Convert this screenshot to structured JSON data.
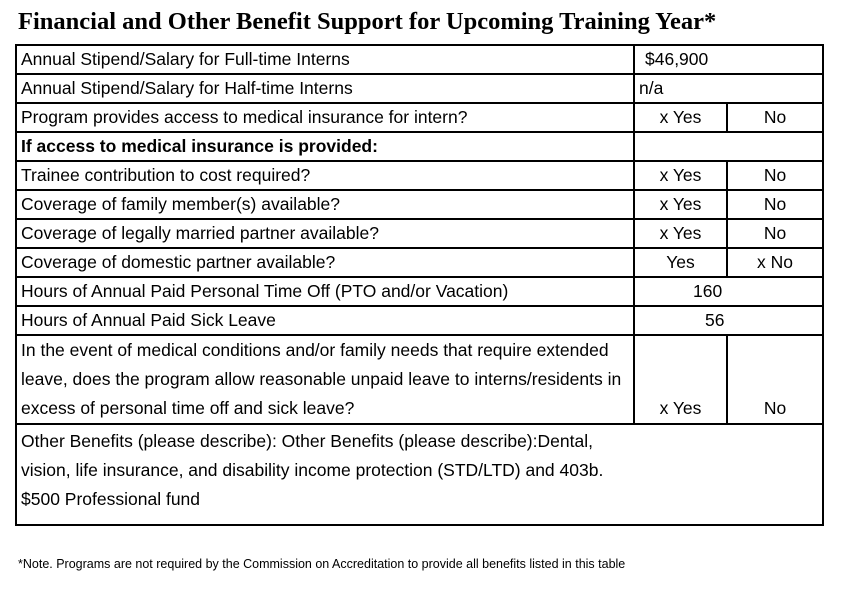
{
  "title": "Financial and Other Benefit Support for Upcoming Training Year*",
  "rows": {
    "full_time": {
      "label": "Annual Stipend/Salary for Full-time Interns",
      "value": "$46,900"
    },
    "half_time": {
      "label": "Annual Stipend/Salary for Half-time Interns",
      "value": "n/a"
    },
    "medical_access": {
      "label": "Program provides access to medical insurance for intern?",
      "yes": "x  Yes",
      "no": "No"
    },
    "if_access": {
      "label": "If access to medical insurance is provided:"
    },
    "trainee_contribution": {
      "label": "Trainee contribution to cost required?",
      "yes": "x  Yes",
      "no": "No"
    },
    "family_coverage": {
      "label": "Coverage of family member(s) available?",
      "yes": "x  Yes",
      "no": "No"
    },
    "married_partner": {
      "label": "Coverage of legally married partner available?",
      "yes": "x  Yes",
      "no": "No"
    },
    "domestic_partner": {
      "label": "Coverage of domestic partner available?",
      "yes": "Yes",
      "no": "x  No"
    },
    "pto": {
      "label": "Hours of Annual Paid Personal Time Off (PTO and/or Vacation)",
      "value": "160"
    },
    "sick_leave": {
      "label": "Hours of Annual Paid Sick Leave",
      "value": "56"
    },
    "unpaid_leave": {
      "label": "In the event of medical conditions and/or family needs that require extended leave, does the program allow reasonable unpaid leave to interns/residents in excess of personal time off and sick leave?",
      "yes": "x  Yes",
      "no": "No"
    },
    "other_benefits": {
      "label": "Other Benefits (please describe): Other Benefits (please describe):Dental, vision, life insurance, and disability income protection (STD/LTD) and 403b. $500 Professional fund"
    }
  },
  "note": "*Note. Programs are not required by the Commission on Accreditation to provide all benefits listed in this table"
}
